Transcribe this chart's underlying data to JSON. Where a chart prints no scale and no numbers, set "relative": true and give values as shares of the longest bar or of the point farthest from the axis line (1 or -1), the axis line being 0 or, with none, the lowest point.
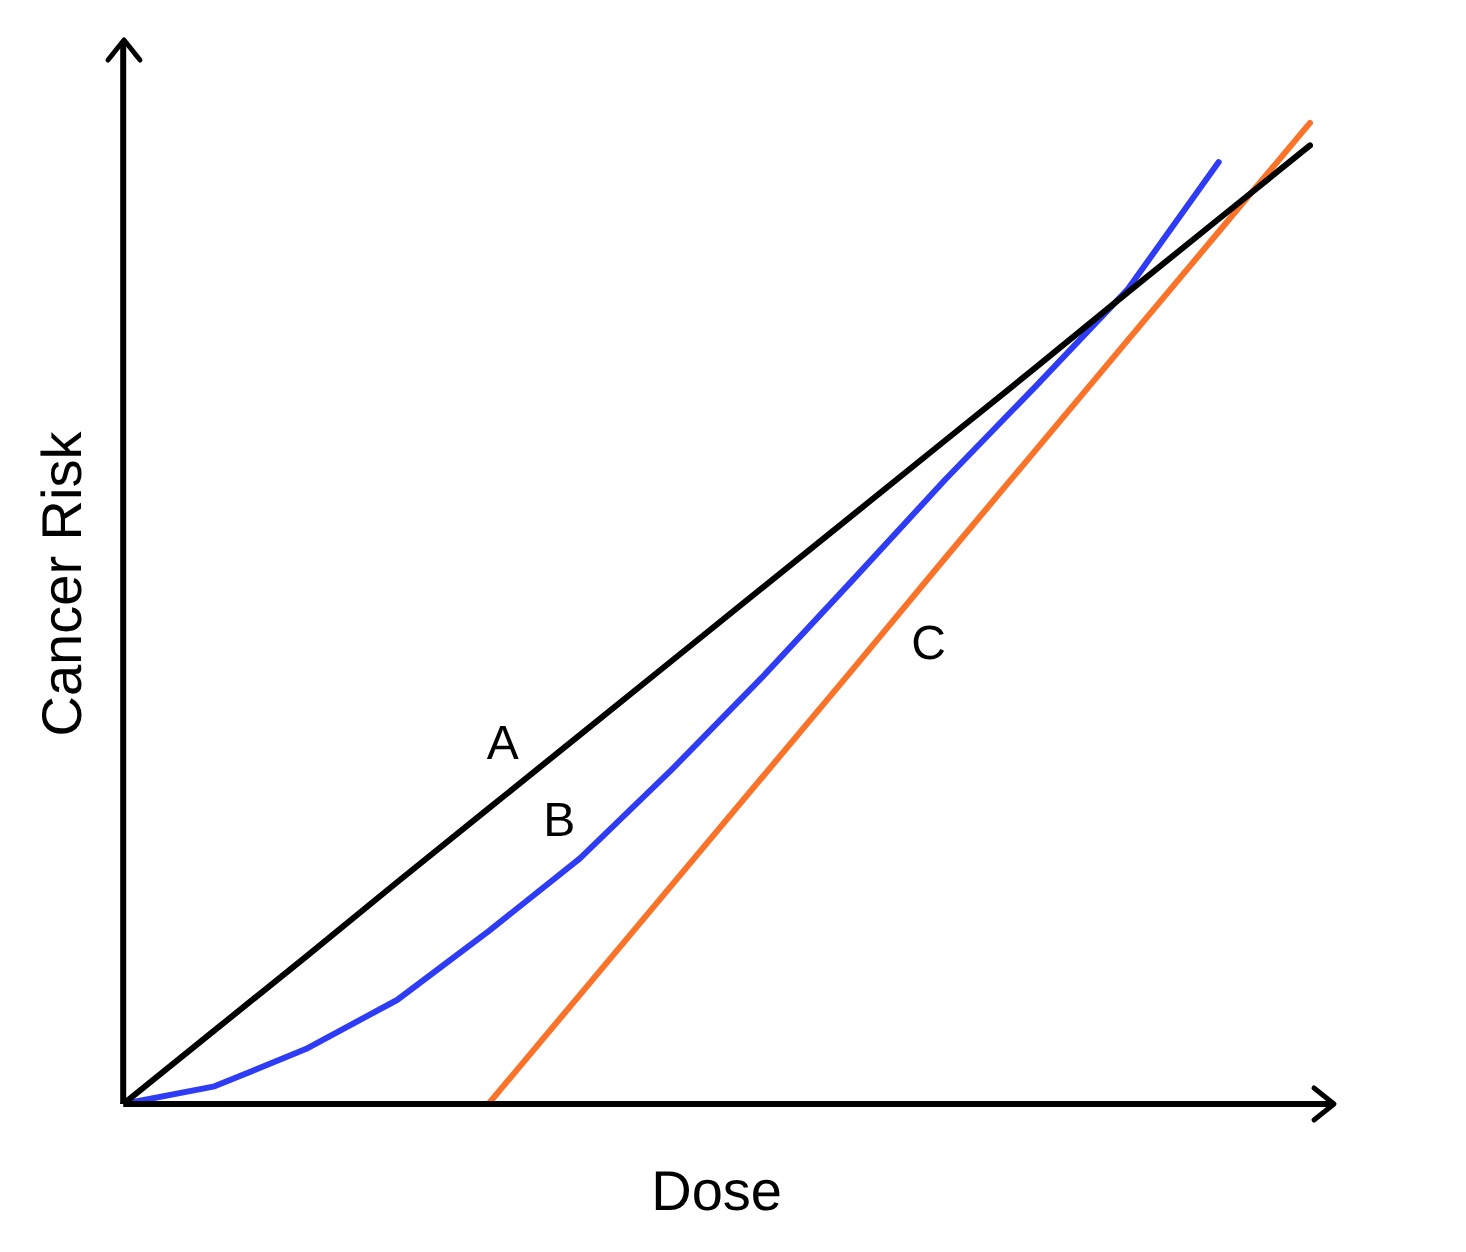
{
  "chart_data": {
    "type": "line",
    "relative": true,
    "xlabel": "Dose",
    "ylabel": "Cancer Risk",
    "legend": false,
    "grid": false,
    "marker": "none",
    "categories": [
      null,
      null,
      null,
      null,
      null,
      null,
      null,
      null,
      null,
      null,
      null,
      null,
      null,
      null
    ],
    "series": [
      {
        "name": "A",
        "color": "#000000",
        "values": [
          0,
          0.075,
          0.15,
          0.226,
          0.301,
          0.376,
          0.451,
          0.526,
          0.601,
          0.676,
          0.751,
          0.827,
          0.902,
          0.977
        ]
      },
      {
        "name": "B",
        "color": "#2f3cf5",
        "values": [
          0,
          0.018,
          0.056,
          0.106,
          0.176,
          0.25,
          0.34,
          0.435,
          0.535,
          0.636,
          0.732,
          0.83,
          0.96,
          null
        ]
      },
      {
        "name": "C",
        "color": "#fa7328",
        "values": [
          null,
          null,
          null,
          null,
          0,
          0.111,
          0.222,
          0.333,
          0.444,
          0.556,
          0.667,
          0.778,
          0.889,
          1
        ]
      }
    ]
  }
}
